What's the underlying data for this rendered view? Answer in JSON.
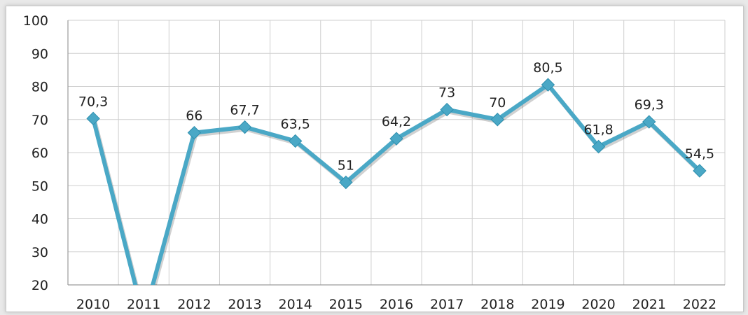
{
  "chart_data": {
    "type": "line",
    "categories": [
      "2010",
      "2011",
      "2012",
      "2013",
      "2014",
      "2015",
      "2016",
      "2017",
      "2018",
      "2019",
      "2020",
      "2021",
      "2022"
    ],
    "series": [
      {
        "values": [
          70.3,
          10,
          66,
          67.7,
          63.5,
          51,
          64.2,
          73,
          70,
          80.5,
          61.8,
          69.3,
          54.5
        ],
        "data_labels": [
          "70,3",
          null,
          "66",
          "67,7",
          "63,5",
          "51",
          "64,2",
          "73",
          "70",
          "80,5",
          "61,8",
          "69,3",
          "54,5"
        ],
        "color": "#4aa8c6"
      }
    ],
    "y_ticks": [
      "20",
      "30",
      "40",
      "50",
      "60",
      "70",
      "80",
      "90",
      "100"
    ],
    "ylim": [
      20,
      100
    ],
    "grid": true,
    "legend": "none",
    "title": "",
    "xlabel": "",
    "ylabel": ""
  }
}
